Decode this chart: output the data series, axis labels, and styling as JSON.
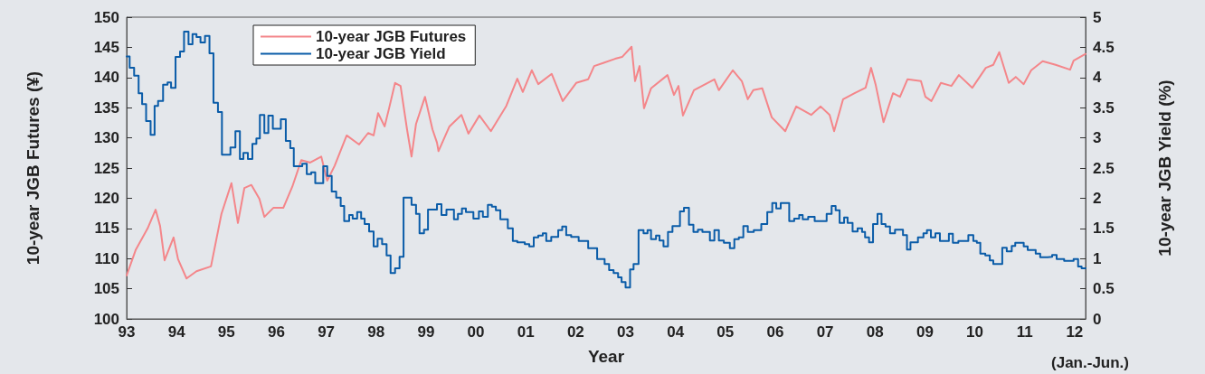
{
  "chart_data": {
    "type": "line",
    "xlabel": "Year",
    "ylabel": "10-year JGB Futures (¥)",
    "y2label": "10-year JGB Yield (%)",
    "annotations": [
      "(Jan.-Jun.)"
    ],
    "xlim": [
      1993,
      2012.22
    ],
    "xticks": [
      {
        "value": 1993,
        "label": "93"
      },
      {
        "value": 1994,
        "label": "94"
      },
      {
        "value": 1995,
        "label": "95"
      },
      {
        "value": 1996,
        "label": "96"
      },
      {
        "value": 1997,
        "label": "97"
      },
      {
        "value": 1998,
        "label": "98"
      },
      {
        "value": 1999,
        "label": "99"
      },
      {
        "value": 2000,
        "label": "00"
      },
      {
        "value": 2001,
        "label": "01"
      },
      {
        "value": 2002,
        "label": "02"
      },
      {
        "value": 2003,
        "label": "03"
      },
      {
        "value": 2004,
        "label": "04"
      },
      {
        "value": 2005,
        "label": "05"
      },
      {
        "value": 2006,
        "label": "06"
      },
      {
        "value": 2007,
        "label": "07"
      },
      {
        "value": 2008,
        "label": "08"
      },
      {
        "value": 2009,
        "label": "09"
      },
      {
        "value": 2010,
        "label": "10"
      },
      {
        "value": 2011,
        "label": "11"
      },
      {
        "value": 2012,
        "label": "12"
      }
    ],
    "ylim": [
      100,
      150
    ],
    "yticks": [
      100,
      105,
      110,
      115,
      120,
      125,
      130,
      135,
      140,
      145,
      150
    ],
    "y2lim": [
      0,
      5
    ],
    "y2ticks": [
      0,
      0.5,
      1,
      1.5,
      2,
      2.5,
      3,
      3.5,
      4,
      4.5,
      5
    ],
    "grid": false,
    "legend": "top left",
    "marker": "none",
    "series": [
      {
        "name": "10-year JGB Futures",
        "color": "#f4868a",
        "type": "line",
        "x": [
          1993.0,
          1993.18,
          1993.42,
          1993.58,
          1993.67,
          1993.76,
          1993.94,
          1994.03,
          1994.2,
          1994.4,
          1994.69,
          1994.9,
          1995.1,
          1995.23,
          1995.36,
          1995.5,
          1995.66,
          1995.76,
          1995.94,
          1996.14,
          1996.32,
          1996.5,
          1996.68,
          1996.9,
          1997.02,
          1997.17,
          1997.41,
          1997.66,
          1997.84,
          1997.95,
          1998.04,
          1998.17,
          1998.26,
          1998.38,
          1998.49,
          1998.62,
          1998.71,
          1998.8,
          1998.98,
          1999.13,
          1999.22,
          1999.25,
          1999.47,
          1999.71,
          1999.85,
          2000.07,
          2000.3,
          2000.61,
          2000.83,
          2000.94,
          2001.12,
          2001.25,
          2001.52,
          2001.74,
          2002.01,
          2002.25,
          2002.37,
          2002.55,
          2002.79,
          2002.93,
          2003.12,
          2003.19,
          2003.28,
          2003.37,
          2003.51,
          2003.84,
          2003.97,
          2004.06,
          2004.15,
          2004.37,
          2004.78,
          2004.87,
          2005.15,
          2005.33,
          2005.45,
          2005.56,
          2005.74,
          2005.93,
          2006.2,
          2006.42,
          2006.72,
          2006.91,
          2007.09,
          2007.18,
          2007.36,
          2007.59,
          2007.81,
          2007.92,
          2008.01,
          2008.17,
          2008.36,
          2008.5,
          2008.65,
          2008.92,
          2009.01,
          2009.13,
          2009.32,
          2009.53,
          2009.68,
          2009.95,
          2010.22,
          2010.37,
          2010.49,
          2010.68,
          2010.82,
          2010.98,
          2011.13,
          2011.36,
          2011.62,
          2011.91,
          2011.98,
          2012.22
        ],
        "values": [
          107.2,
          111.4,
          115.0,
          118.1,
          115.4,
          109.7,
          113.5,
          109.9,
          106.7,
          107.9,
          108.7,
          117.4,
          122.5,
          115.9,
          121.7,
          122.2,
          119.9,
          116.9,
          118.4,
          118.4,
          121.9,
          126.3,
          125.9,
          126.9,
          122.9,
          125.4,
          130.4,
          128.9,
          130.8,
          130.4,
          134.1,
          131.9,
          134.9,
          139.1,
          138.6,
          131.4,
          126.9,
          132.3,
          136.8,
          131.4,
          129.2,
          127.8,
          131.9,
          133.8,
          130.7,
          133.7,
          131.1,
          135.3,
          139.8,
          137.6,
          141.2,
          138.9,
          140.6,
          136.1,
          139.1,
          139.7,
          141.9,
          142.4,
          143.1,
          143.4,
          145.1,
          139.4,
          141.9,
          134.9,
          138.2,
          140.4,
          137.1,
          138.6,
          133.7,
          137.9,
          139.7,
          137.9,
          141.2,
          139.4,
          136.4,
          137.9,
          138.2,
          133.4,
          131.1,
          135.2,
          133.8,
          135.2,
          133.8,
          131.1,
          136.4,
          137.4,
          138.3,
          141.6,
          138.9,
          132.6,
          137.4,
          136.8,
          139.7,
          139.4,
          136.8,
          136.1,
          139.1,
          138.6,
          140.4,
          138.3,
          141.6,
          142.1,
          144.2,
          139.1,
          140.1,
          138.9,
          141.2,
          142.7,
          142.1,
          141.3,
          142.8,
          143.9
        ]
      },
      {
        "name": "10-year JGB Yield",
        "color": "#0a5ca8",
        "type": "step",
        "axis": "y2",
        "x": [
          1993.0,
          1993.06,
          1993.15,
          1993.24,
          1993.31,
          1993.39,
          1993.48,
          1993.56,
          1993.63,
          1993.73,
          1993.82,
          1993.89,
          1993.98,
          1994.07,
          1994.15,
          1994.24,
          1994.32,
          1994.4,
          1994.48,
          1994.57,
          1994.66,
          1994.74,
          1994.83,
          1994.91,
          1995.08,
          1995.18,
          1995.27,
          1995.34,
          1995.43,
          1995.52,
          1995.6,
          1995.67,
          1995.76,
          1995.84,
          1995.93,
          1996.09,
          1996.19,
          1996.28,
          1996.35,
          1996.52,
          1996.61,
          1996.7,
          1996.78,
          1996.94,
          1997.02,
          1997.11,
          1997.2,
          1997.29,
          1997.36,
          1997.46,
          1997.53,
          1997.62,
          1997.7,
          1997.77,
          1997.86,
          1997.95,
          1998.03,
          1998.12,
          1998.21,
          1998.29,
          1998.38,
          1998.47,
          1998.55,
          1998.71,
          1998.8,
          1998.87,
          1998.96,
          1999.04,
          1999.22,
          1999.31,
          1999.41,
          1999.56,
          1999.64,
          1999.72,
          1999.8,
          1999.95,
          2000.06,
          2000.14,
          2000.24,
          2000.32,
          2000.4,
          2000.49,
          2000.64,
          2000.74,
          2000.83,
          2000.98,
          2001.07,
          2001.16,
          2001.25,
          2001.34,
          2001.41,
          2001.51,
          2001.65,
          2001.73,
          2001.81,
          2001.91,
          2002.06,
          2002.25,
          2002.43,
          2002.58,
          2002.67,
          2002.76,
          2002.85,
          2002.92,
          2003.0,
          2003.09,
          2003.16,
          2003.26,
          2003.36,
          2003.44,
          2003.51,
          2003.61,
          2003.68,
          2003.76,
          2003.85,
          2003.94,
          2004.09,
          2004.17,
          2004.27,
          2004.36,
          2004.45,
          2004.54,
          2004.69,
          2004.78,
          2004.87,
          2004.97,
          2005.09,
          2005.18,
          2005.27,
          2005.36,
          2005.45,
          2005.57,
          2005.72,
          2005.84,
          2005.94,
          2006.02,
          2006.11,
          2006.28,
          2006.38,
          2006.48,
          2006.55,
          2006.66,
          2006.79,
          2007.03,
          2007.13,
          2007.21,
          2007.29,
          2007.38,
          2007.45,
          2007.55,
          2007.65,
          2007.74,
          2007.8,
          2007.88,
          2007.96,
          2008.05,
          2008.13,
          2008.21,
          2008.3,
          2008.4,
          2008.56,
          2008.64,
          2008.71,
          2008.86,
          2008.97,
          2009.04,
          2009.12,
          2009.21,
          2009.3,
          2009.48,
          2009.56,
          2009.67,
          2009.87,
          2009.97,
          2010.04,
          2010.11,
          2010.21,
          2010.3,
          2010.37,
          2010.55,
          2010.64,
          2010.74,
          2010.81,
          2010.98,
          2011.06,
          2011.22,
          2011.31,
          2011.46,
          2011.55,
          2011.64,
          2011.79,
          2011.98,
          2012.07,
          2012.14,
          2012.22
        ],
        "values": [
          4.35,
          4.16,
          4.03,
          3.74,
          3.56,
          3.28,
          3.05,
          3.53,
          3.61,
          3.88,
          3.92,
          3.83,
          4.34,
          4.43,
          4.76,
          4.55,
          4.72,
          4.67,
          4.58,
          4.69,
          4.4,
          3.58,
          3.43,
          2.72,
          2.84,
          3.11,
          2.65,
          2.75,
          2.65,
          2.9,
          2.99,
          3.38,
          3.08,
          3.37,
          3.15,
          3.31,
          2.95,
          2.83,
          2.53,
          2.57,
          2.4,
          2.43,
          2.25,
          2.53,
          2.37,
          2.11,
          2.01,
          1.87,
          1.62,
          1.72,
          1.66,
          1.77,
          1.66,
          1.57,
          1.45,
          1.2,
          1.33,
          1.24,
          1.05,
          0.76,
          0.84,
          1.03,
          2.01,
          1.89,
          1.74,
          1.42,
          1.48,
          1.81,
          1.9,
          1.72,
          1.81,
          1.65,
          1.74,
          1.83,
          1.77,
          1.66,
          1.78,
          1.69,
          1.89,
          1.86,
          1.8,
          1.65,
          1.5,
          1.29,
          1.27,
          1.24,
          1.2,
          1.35,
          1.38,
          1.42,
          1.29,
          1.36,
          1.47,
          1.53,
          1.39,
          1.36,
          1.29,
          1.17,
          0.99,
          0.91,
          0.81,
          0.76,
          0.69,
          0.61,
          0.52,
          0.82,
          0.91,
          1.47,
          1.42,
          1.47,
          1.32,
          1.38,
          1.3,
          1.2,
          1.44,
          1.54,
          1.78,
          1.84,
          1.56,
          1.44,
          1.48,
          1.44,
          1.3,
          1.47,
          1.3,
          1.26,
          1.17,
          1.32,
          1.35,
          1.54,
          1.44,
          1.47,
          1.57,
          1.77,
          1.92,
          1.83,
          1.92,
          1.62,
          1.66,
          1.72,
          1.65,
          1.69,
          1.62,
          1.74,
          1.87,
          1.8,
          1.59,
          1.68,
          1.59,
          1.45,
          1.5,
          1.44,
          1.35,
          1.27,
          1.57,
          1.74,
          1.57,
          1.53,
          1.42,
          1.48,
          1.39,
          1.15,
          1.27,
          1.35,
          1.42,
          1.47,
          1.35,
          1.42,
          1.29,
          1.41,
          1.26,
          1.29,
          1.39,
          1.29,
          1.26,
          1.08,
          1.05,
          0.97,
          0.91,
          1.18,
          1.12,
          1.21,
          1.26,
          1.2,
          1.14,
          1.08,
          1.02,
          1.03,
          1.06,
          0.99,
          0.96,
          0.99,
          0.87,
          0.84,
          0.84
        ]
      }
    ]
  }
}
